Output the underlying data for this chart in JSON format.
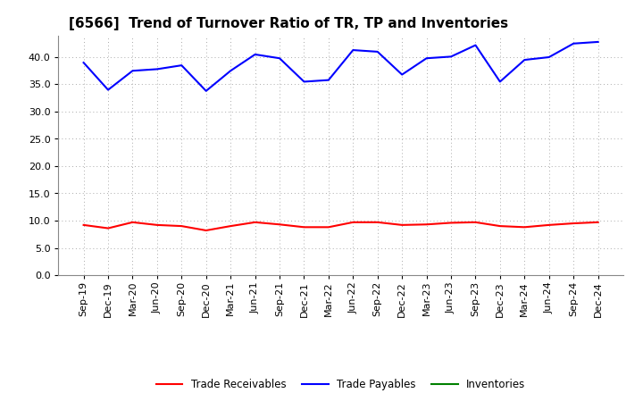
{
  "title": "[6566]  Trend of Turnover Ratio of TR, TP and Inventories",
  "x_labels": [
    "Sep-19",
    "Dec-19",
    "Mar-20",
    "Jun-20",
    "Sep-20",
    "Dec-20",
    "Mar-21",
    "Jun-21",
    "Sep-21",
    "Dec-21",
    "Mar-22",
    "Jun-22",
    "Sep-22",
    "Dec-22",
    "Mar-23",
    "Jun-23",
    "Sep-23",
    "Dec-23",
    "Mar-24",
    "Jun-24",
    "Sep-24",
    "Dec-24"
  ],
  "trade_payables": [
    39.0,
    34.0,
    37.5,
    37.8,
    38.5,
    33.8,
    37.5,
    40.5,
    39.8,
    35.5,
    35.8,
    41.3,
    41.0,
    36.8,
    39.8,
    40.1,
    42.2,
    35.5,
    39.5,
    40.0,
    42.5,
    42.8
  ],
  "trade_receivables": [
    9.2,
    8.6,
    9.7,
    9.2,
    9.0,
    8.2,
    9.0,
    9.7,
    9.3,
    8.8,
    8.8,
    9.7,
    9.7,
    9.2,
    9.3,
    9.6,
    9.7,
    9.0,
    8.8,
    9.2,
    9.5,
    9.7
  ],
  "inventories": [
    null,
    null,
    null,
    null,
    null,
    null,
    null,
    null,
    null,
    null,
    null,
    null,
    null,
    null,
    null,
    null,
    null,
    null,
    null,
    null,
    null,
    null
  ],
  "ylim": [
    0.0,
    44.0
  ],
  "yticks": [
    0.0,
    5.0,
    10.0,
    15.0,
    20.0,
    25.0,
    30.0,
    35.0,
    40.0
  ],
  "color_tp": "#0000FF",
  "color_tr": "#FF0000",
  "color_inv": "#008000",
  "legend_labels": [
    "Trade Receivables",
    "Trade Payables",
    "Inventories"
  ],
  "background_color": "#FFFFFF",
  "grid_color": "#AAAAAA",
  "title_fontsize": 11,
  "tick_fontsize": 8,
  "linewidth": 1.5
}
